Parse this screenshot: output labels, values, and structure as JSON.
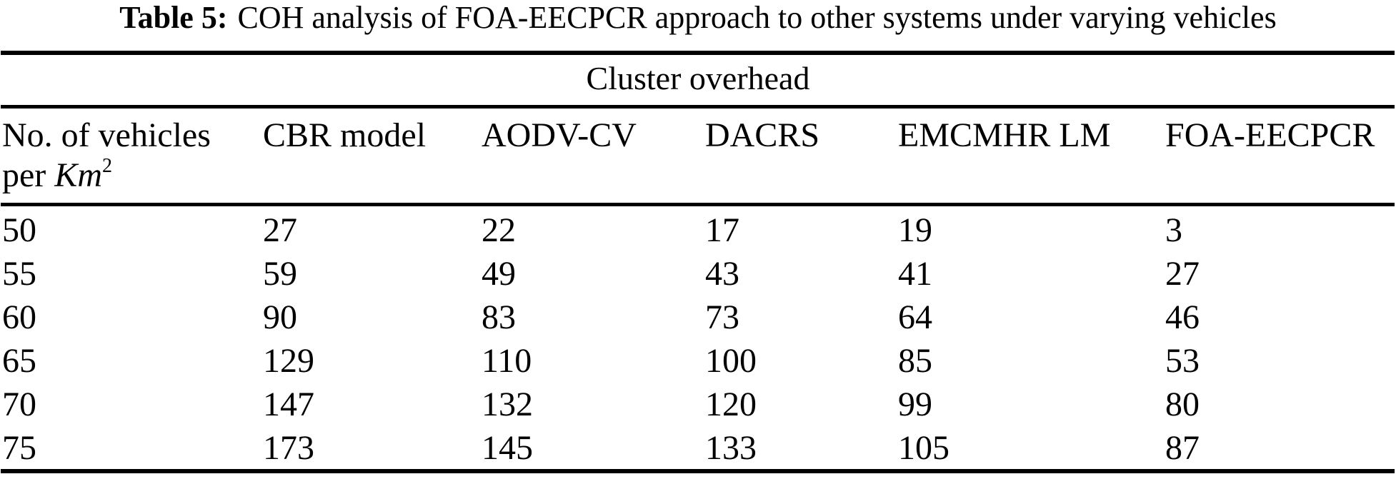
{
  "colors": {
    "text": "#000000",
    "background": "#ffffff",
    "rule": "#000000"
  },
  "caption": {
    "label": "Table 5:",
    "text": "COH analysis of FOA-EECPCR approach to other systems under varying vehicles"
  },
  "table": {
    "span_header": "Cluster overhead",
    "columns": [
      "No. of vehicles per Km2",
      "CBR model",
      "AODV-CV",
      "DACRS",
      "EMCMHR LM",
      "FOA-EECPCR"
    ],
    "col1_parts": {
      "line1": "No. of vehicles",
      "line2_prefix": "per ",
      "line2_unit": "Km",
      "line2_sup": "2"
    },
    "rows": [
      [
        "50",
        "27",
        "22",
        "17",
        "19",
        "3"
      ],
      [
        "55",
        "59",
        "49",
        "43",
        "41",
        "27"
      ],
      [
        "60",
        "90",
        "83",
        "73",
        "64",
        "46"
      ],
      [
        "65",
        "129",
        "110",
        "100",
        "85",
        "53"
      ],
      [
        "70",
        "147",
        "132",
        "120",
        "99",
        "80"
      ],
      [
        "75",
        "173",
        "145",
        "133",
        "105",
        "87"
      ]
    ]
  }
}
